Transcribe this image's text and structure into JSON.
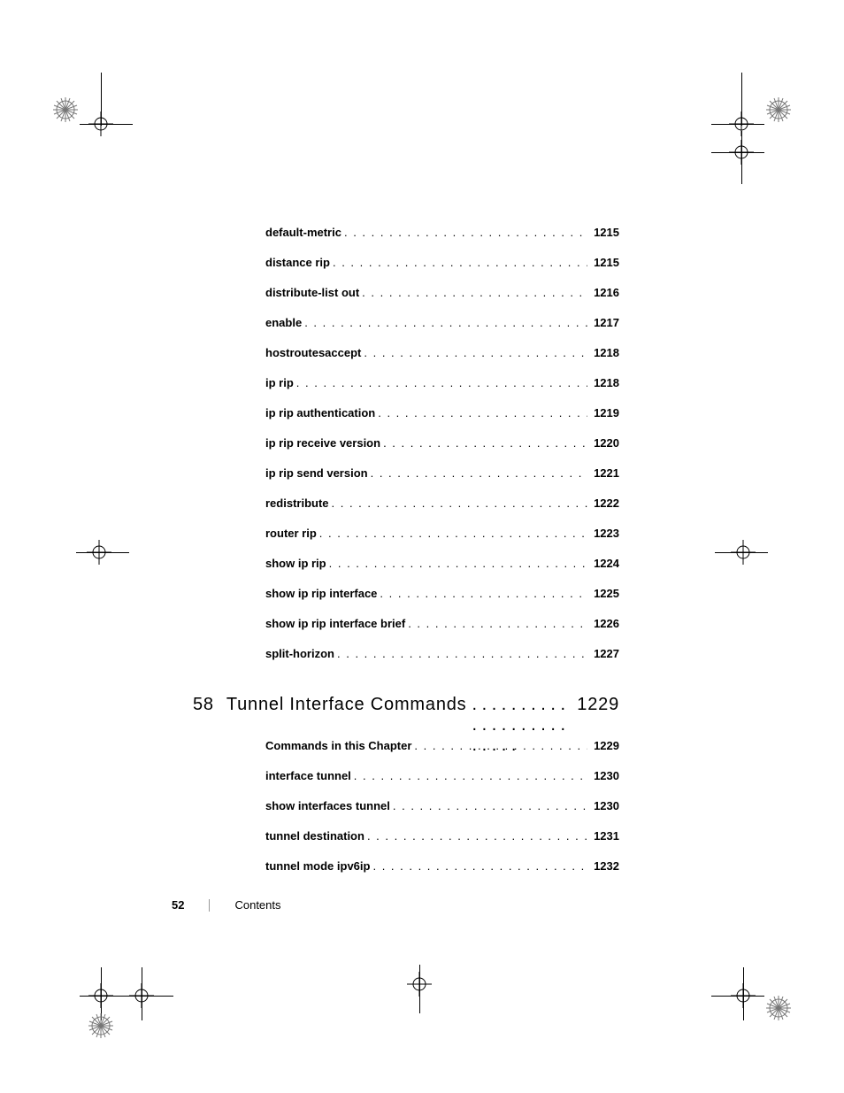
{
  "toc1": [
    {
      "label": "default-metric",
      "page": "1215"
    },
    {
      "label": "distance rip",
      "page": "1215"
    },
    {
      "label": "distribute-list out",
      "page": "1216"
    },
    {
      "label": "enable",
      "page": "1217"
    },
    {
      "label": "hostroutesaccept",
      "page": "1218"
    },
    {
      "label": "ip rip",
      "page": "1218"
    },
    {
      "label": "ip rip authentication",
      "page": "1219"
    },
    {
      "label": "ip rip receive version",
      "page": "1220"
    },
    {
      "label": "ip rip send version",
      "page": "1221"
    },
    {
      "label": "redistribute",
      "page": "1222"
    },
    {
      "label": "router rip",
      "page": "1223"
    },
    {
      "label": "show ip rip",
      "page": "1224"
    },
    {
      "label": "show ip rip interface",
      "page": "1225"
    },
    {
      "label": "show ip rip interface brief",
      "page": "1226"
    },
    {
      "label": "split-horizon",
      "page": "1227"
    }
  ],
  "chapter": {
    "num": "58",
    "title": "Tunnel Interface Commands",
    "page": "1229"
  },
  "toc2": [
    {
      "label": "Commands in this Chapter",
      "page": "1229"
    },
    {
      "label": "interface tunnel",
      "page": "1230"
    },
    {
      "label": "show interfaces tunnel",
      "page": "1230"
    },
    {
      "label": "tunnel destination",
      "page": "1231"
    },
    {
      "label": "tunnel mode ipv6ip",
      "page": "1232"
    }
  ],
  "footer": {
    "page": "52",
    "label": "Contents"
  },
  "marks": {
    "color_line": "#000000",
    "color_star": "#767676"
  }
}
